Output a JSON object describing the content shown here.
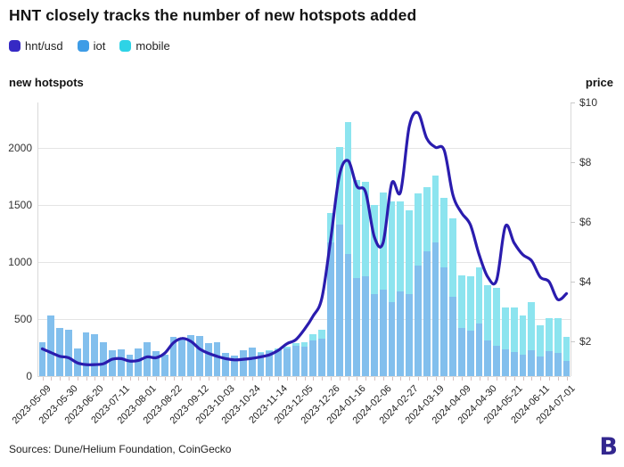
{
  "title": "HNT closely tracks the number of new hotspots added",
  "legend": {
    "items": [
      {
        "label": "hnt/usd",
        "color": "#3629c4"
      },
      {
        "label": "iot",
        "color": "#3e9ce6"
      },
      {
        "label": "mobile",
        "color": "#2ed3e6"
      }
    ]
  },
  "left_axis_title": "new hotspots",
  "right_axis_title": "price",
  "footer": {
    "sources": "Sources: Dune/Helium Foundation, CoinGecko",
    "logo_letter": "B"
  },
  "chart_data": {
    "type": "bar",
    "subtype": "stacked-bar-with-line",
    "title": "HNT closely tracks the number of new hotspots added",
    "left_ylabel": "new hotspots",
    "right_ylabel": "price",
    "left_ylim": [
      0,
      2400
    ],
    "left_ticks": [
      0,
      500,
      1000,
      1500,
      2000
    ],
    "right_ticks": [
      "$2",
      "$4",
      "$6",
      "$8",
      "$10"
    ],
    "grid": "horizontal",
    "legend_position": "top-left",
    "x_label_every": 3,
    "categories": [
      "2023-05-09",
      "2023-05-16",
      "2023-05-23",
      "2023-05-30",
      "2023-06-06",
      "2023-06-13",
      "2023-06-20",
      "2023-06-27",
      "2023-07-04",
      "2023-07-11",
      "2023-07-18",
      "2023-07-25",
      "2023-08-01",
      "2023-08-08",
      "2023-08-15",
      "2023-08-22",
      "2023-08-29",
      "2023-09-05",
      "2023-09-12",
      "2023-09-19",
      "2023-09-26",
      "2023-10-03",
      "2023-10-10",
      "2023-10-17",
      "2023-10-24",
      "2023-10-31",
      "2023-11-07",
      "2023-11-14",
      "2023-11-21",
      "2023-11-28",
      "2023-12-05",
      "2023-12-12",
      "2023-12-19",
      "2023-12-26",
      "2024-01-02",
      "2024-01-09",
      "2024-01-16",
      "2024-01-23",
      "2024-01-30",
      "2024-02-06",
      "2024-02-13",
      "2024-02-20",
      "2024-02-27",
      "2024-03-05",
      "2024-03-12",
      "2024-03-19",
      "2024-03-26",
      "2024-04-02",
      "2024-04-09",
      "2024-04-16",
      "2024-04-23",
      "2024-04-30",
      "2024-05-07",
      "2024-05-14",
      "2024-05-21",
      "2024-05-28",
      "2024-06-04",
      "2024-06-11",
      "2024-06-18",
      "2024-06-25",
      "2024-07-01"
    ],
    "series": [
      {
        "name": "iot",
        "type": "bar",
        "stack": "hotspots",
        "axis": "left",
        "color": "#82bfed",
        "values": [
          300,
          530,
          425,
          405,
          245,
          385,
          370,
          300,
          230,
          235,
          190,
          240,
          300,
          215,
          185,
          345,
          330,
          360,
          355,
          290,
          295,
          200,
          180,
          230,
          250,
          200,
          215,
          225,
          240,
          265,
          255,
          310,
          330,
          1175,
          1330,
          1070,
          860,
          875,
          720,
          760,
          650,
          740,
          720,
          965,
          1095,
          1175,
          950,
          695,
          420,
          395,
          460,
          315,
          265,
          235,
          210,
          185,
          225,
          170,
          220,
          200,
          135
        ]
      },
      {
        "name": "mobile",
        "type": "bar",
        "stack": "hotspots",
        "axis": "left",
        "color": "#8ce4ef",
        "values": [
          0,
          0,
          0,
          0,
          0,
          0,
          0,
          0,
          0,
          0,
          0,
          0,
          0,
          0,
          0,
          0,
          0,
          0,
          0,
          0,
          0,
          0,
          0,
          0,
          0,
          10,
          15,
          15,
          20,
          25,
          40,
          60,
          75,
          255,
          680,
          1160,
          860,
          830,
          780,
          850,
          880,
          790,
          730,
          640,
          560,
          585,
          615,
          690,
          460,
          480,
          490,
          485,
          510,
          370,
          390,
          350,
          420,
          275,
          285,
          310,
          205
        ]
      },
      {
        "name": "hnt/usd",
        "type": "line",
        "axis": "right",
        "color": "#2a1cae",
        "values": [
          1.75,
          1.62,
          1.5,
          1.45,
          1.28,
          1.22,
          1.22,
          1.25,
          1.4,
          1.42,
          1.34,
          1.36,
          1.48,
          1.45,
          1.6,
          1.95,
          2.1,
          2.0,
          1.75,
          1.6,
          1.5,
          1.42,
          1.38,
          1.4,
          1.43,
          1.48,
          1.55,
          1.7,
          1.92,
          2.05,
          2.4,
          2.85,
          3.45,
          5.4,
          7.55,
          8.05,
          7.2,
          7.0,
          5.5,
          5.3,
          7.3,
          7.0,
          9.2,
          9.65,
          8.8,
          8.5,
          8.4,
          6.9,
          6.3,
          5.9,
          4.9,
          4.15,
          4.05,
          5.85,
          5.3,
          4.9,
          4.7,
          4.15,
          4.0,
          3.4,
          3.6
        ]
      }
    ]
  }
}
